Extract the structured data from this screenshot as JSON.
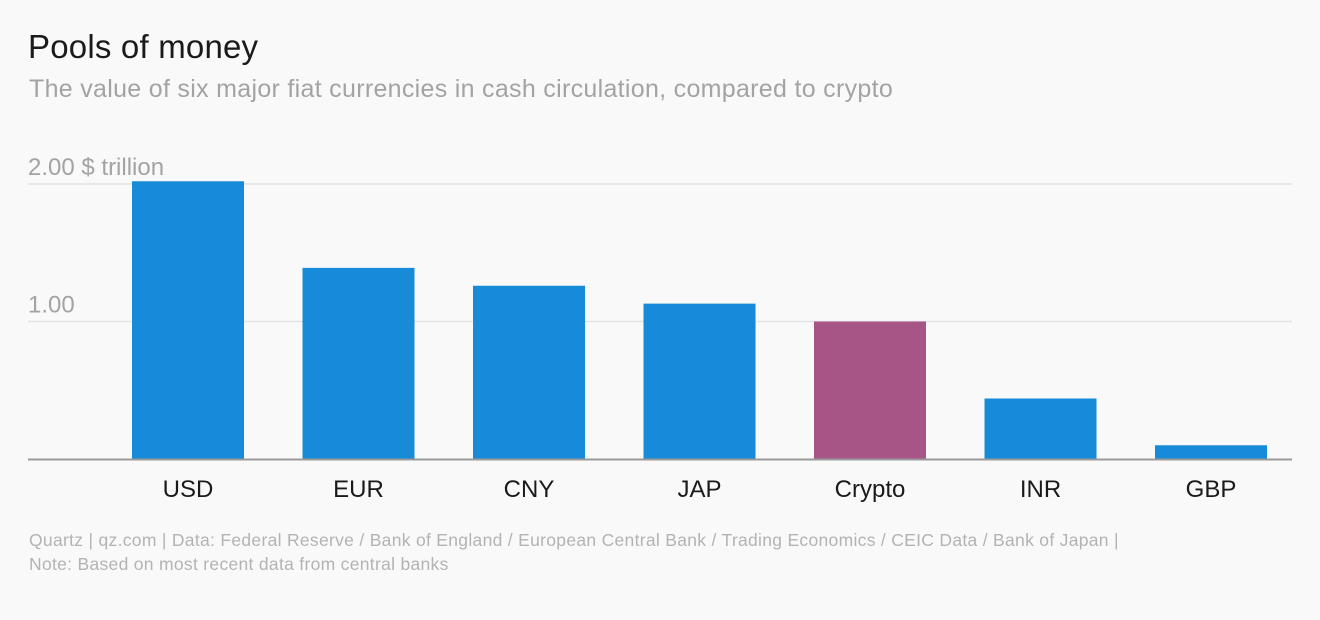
{
  "header": {
    "title": "Pools of money",
    "subtitle": "The value of six major fiat currencies in cash circulation, compared to crypto"
  },
  "footer": {
    "source_line": "Quartz | qz.com | Data: Federal Reserve / Bank of England / European Central Bank / Trading Economics / CEIC Data / Bank of Japan |",
    "note_line": "Note: Based on most recent data from central banks"
  },
  "colors": {
    "fiat": "#178bd8",
    "crypto": "#a65586",
    "grid": "#e3e3e3",
    "axis": "#9a9a9a"
  },
  "chart_data": {
    "type": "bar",
    "title": "Pools of money",
    "subtitle": "The value of six major fiat currencies in cash circulation, compared to crypto",
    "xlabel": "",
    "ylabel": "",
    "ylim": [
      0,
      2
    ],
    "grid": true,
    "y_ticks": [
      {
        "value": 1.0,
        "label": "1.00"
      },
      {
        "value": 2.0,
        "label": "2.00 $ trillion"
      }
    ],
    "categories": [
      "USD",
      "EUR",
      "CNY",
      "JAP",
      "Crypto",
      "INR",
      "GBP"
    ],
    "values": [
      2.02,
      1.39,
      1.26,
      1.13,
      1.0,
      0.44,
      0.1
    ],
    "highlight": [
      "fiat",
      "fiat",
      "fiat",
      "fiat",
      "crypto",
      "fiat",
      "fiat"
    ]
  }
}
